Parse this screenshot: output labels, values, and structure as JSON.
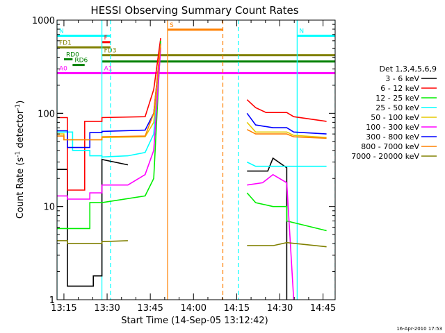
{
  "chart_data": {
    "type": "line",
    "title": "HESSI Observing Summary Count Rates",
    "xlabel": "Start Time (14-Sep-05 13:12:42)",
    "ylabel_main": "Count Rate (s",
    "ylabel_sup1": "-1",
    "ylabel_mid": " detector",
    "ylabel_sup2": "-1",
    "ylabel_end": ")",
    "footer": "16-Apr-2010 17:53",
    "y_scale": "log",
    "ylim": [
      1,
      1000
    ],
    "xlim": [
      13.21,
      14.82
    ],
    "y_ticks": [
      {
        "v": 1,
        "label": "1"
      },
      {
        "v": 10,
        "label": "10"
      },
      {
        "v": 100,
        "label": "100"
      },
      {
        "v": 1000,
        "label": "1000"
      }
    ],
    "x_ticks": [
      {
        "v": 13.25,
        "label": "13:15"
      },
      {
        "v": 13.5,
        "label": "13:30"
      },
      {
        "v": 13.75,
        "label": "13:45"
      },
      {
        "v": 14.0,
        "label": "14:00"
      },
      {
        "v": 14.25,
        "label": "14:15"
      },
      {
        "v": 14.5,
        "label": "14:30"
      },
      {
        "v": 14.75,
        "label": "14:45"
      }
    ],
    "legend_placement": "right",
    "legend_title": "Det 1,3,4,5,6,9",
    "series": [
      {
        "name": "3 - 6 keV",
        "color": "#000000",
        "segments": [
          [
            [
              13.21,
              25
            ],
            [
              13.27,
              25
            ],
            [
              13.27,
              1.4
            ],
            [
              13.42,
              1.4
            ],
            [
              13.42,
              1.8
            ],
            [
              13.47,
              1.8
            ],
            [
              13.47,
              32
            ],
            [
              13.62,
              28
            ],
            [
              13.62,
              28
            ]
          ],
          [
            [
              14.31,
              24
            ],
            [
              14.43,
              24
            ],
            [
              14.46,
              33
            ],
            [
              14.54,
              26
            ],
            [
              14.54,
              1
            ]
          ]
        ]
      },
      {
        "name": "6 - 12 keV",
        "color": "#ff0000",
        "segments": [
          [
            [
              13.21,
              90
            ],
            [
              13.27,
              90
            ],
            [
              13.27,
              15
            ],
            [
              13.37,
              15
            ],
            [
              13.37,
              82
            ],
            [
              13.47,
              82
            ],
            [
              13.47,
              90
            ],
            [
              13.72,
              92
            ],
            [
              13.77,
              180
            ],
            [
              13.81,
              640
            ]
          ],
          [
            [
              14.31,
              140
            ],
            [
              14.36,
              115
            ],
            [
              14.42,
              102
            ],
            [
              14.54,
              102
            ],
            [
              14.58,
              92
            ],
            [
              14.77,
              82
            ]
          ]
        ]
      },
      {
        "name": "12 - 25 keV",
        "color": "#00ee00",
        "segments": [
          [
            [
              13.21,
              5.8
            ],
            [
              13.27,
              5.8
            ],
            [
              13.27,
              5.8
            ],
            [
              13.4,
              5.8
            ],
            [
              13.4,
              11
            ],
            [
              13.47,
              11
            ],
            [
              13.47,
              11
            ],
            [
              13.72,
              13
            ],
            [
              13.77,
              20
            ],
            [
              13.81,
              600
            ]
          ],
          [
            [
              14.31,
              14
            ],
            [
              14.36,
              11
            ],
            [
              14.46,
              10
            ],
            [
              14.54,
              10
            ],
            [
              14.54,
              7
            ],
            [
              14.77,
              5.5
            ]
          ]
        ]
      },
      {
        "name": "25 - 50 keV",
        "color": "#00ffff",
        "segments": [
          [
            [
              13.21,
              63
            ],
            [
              13.3,
              63
            ],
            [
              13.3,
              40
            ],
            [
              13.4,
              40
            ],
            [
              13.4,
              35
            ],
            [
              13.47,
              35
            ],
            [
              13.47,
              34
            ],
            [
              13.62,
              35
            ],
            [
              13.72,
              38
            ],
            [
              13.77,
              60
            ],
            [
              13.81,
              560
            ]
          ],
          [
            [
              14.31,
              30
            ],
            [
              14.36,
              27
            ],
            [
              14.54,
              27
            ],
            [
              14.58,
              27
            ],
            [
              14.77,
              27
            ]
          ]
        ]
      },
      {
        "name": "50 - 100 keV",
        "color": "#e6c800",
        "segments": [
          [
            [
              13.21,
              60
            ],
            [
              13.25,
              60
            ],
            [
              13.25,
              52
            ],
            [
              13.47,
              52
            ],
            [
              13.47,
              55
            ],
            [
              13.72,
              56
            ],
            [
              13.77,
              80
            ],
            [
              13.81,
              520
            ]
          ],
          [
            [
              14.31,
              80
            ],
            [
              14.36,
              63
            ],
            [
              14.54,
              63
            ],
            [
              14.58,
              58
            ],
            [
              14.77,
              55
            ]
          ]
        ]
      },
      {
        "name": "100 - 300 keV",
        "color": "#ff00ff",
        "segments": [
          [
            [
              13.21,
              13
            ],
            [
              13.27,
              13
            ],
            [
              13.27,
              12
            ],
            [
              13.4,
              12
            ],
            [
              13.4,
              14
            ],
            [
              13.47,
              14
            ],
            [
              13.47,
              17
            ],
            [
              13.62,
              17
            ],
            [
              13.72,
              22
            ],
            [
              13.77,
              40
            ],
            [
              13.81,
              500
            ]
          ],
          [
            [
              14.31,
              17
            ],
            [
              14.4,
              18
            ],
            [
              14.46,
              22
            ],
            [
              14.54,
              18
            ],
            [
              14.58,
              1
            ]
          ]
        ]
      },
      {
        "name": "300 - 800 keV",
        "color": "#0000ff",
        "segments": [
          [
            [
              13.21,
              65
            ],
            [
              13.27,
              65
            ],
            [
              13.27,
              43
            ],
            [
              13.4,
              43
            ],
            [
              13.4,
              62
            ],
            [
              13.47,
              62
            ],
            [
              13.47,
              64
            ],
            [
              13.72,
              66
            ],
            [
              13.77,
              100
            ],
            [
              13.81,
              560
            ]
          ],
          [
            [
              14.31,
              100
            ],
            [
              14.36,
              75
            ],
            [
              14.46,
              70
            ],
            [
              14.54,
              70
            ],
            [
              14.58,
              63
            ],
            [
              14.77,
              60
            ]
          ]
        ]
      },
      {
        "name": "800 - 7000 keV",
        "color": "#ff8000",
        "segments": [
          [
            [
              13.21,
              57
            ],
            [
              13.25,
              57
            ],
            [
              13.25,
              52
            ],
            [
              13.47,
              52
            ],
            [
              13.47,
              56
            ],
            [
              13.72,
              57
            ],
            [
              13.77,
              100
            ],
            [
              13.81,
              560
            ]
          ],
          [
            [
              14.31,
              67
            ],
            [
              14.36,
              60
            ],
            [
              14.54,
              60
            ],
            [
              14.58,
              56
            ],
            [
              14.77,
              54
            ]
          ]
        ]
      },
      {
        "name": "7000 - 20000 keV",
        "color": "#808000",
        "segments": [
          [
            [
              13.21,
              4.3
            ],
            [
              13.27,
              4.3
            ],
            [
              13.27,
              4.0
            ],
            [
              13.47,
              4.0
            ],
            [
              13.47,
              4.2
            ],
            [
              13.62,
              4.3
            ],
            [
              13.62,
              4.3
            ]
          ],
          [
            [
              14.31,
              3.8
            ],
            [
              14.46,
              3.8
            ],
            [
              14.54,
              4.1
            ],
            [
              14.77,
              3.7
            ]
          ]
        ]
      }
    ],
    "flag_lines": [
      {
        "label": "N",
        "color": "#00ffff",
        "x0": 13.21,
        "x1": 13.52,
        "y": 680
      },
      {
        "label": "N",
        "color": "#00ffff",
        "x0": 14.6,
        "x1": 14.82,
        "y": 680
      },
      {
        "label": "F",
        "color": "#ff0000",
        "x0": 13.47,
        "x1": 13.52,
        "y": 580
      },
      {
        "label": "FD1",
        "color": "#808000",
        "x0": 13.21,
        "x1": 13.52,
        "y": 510
      },
      {
        "label": "FD3",
        "color": "#808000",
        "x0": 13.47,
        "x1": 14.82,
        "y": 420
      },
      {
        "label": "RD0",
        "color": "#008000",
        "x0": 13.25,
        "x1": 13.3,
        "y": 380
      },
      {
        "label": "",
        "color": "#008000",
        "x0": 13.47,
        "x1": 14.82,
        "y": 360
      },
      {
        "label": "RD6",
        "color": "#008000",
        "x0": 13.3,
        "x1": 13.37,
        "y": 330
      },
      {
        "label": "A0",
        "color": "#ff00ff",
        "x0": 13.21,
        "x1": 13.52,
        "y": 270
      },
      {
        "label": "A1",
        "color": "#ff00ff",
        "x0": 13.47,
        "x1": 14.82,
        "y": 270
      },
      {
        "label": "S",
        "color": "#ff8000",
        "x0": 13.85,
        "x1": 14.17,
        "y": 790
      }
    ],
    "vertical_lines": [
      {
        "x": 13.21,
        "color": "#00ffff",
        "dashed": false
      },
      {
        "x": 13.52,
        "color": "#00ffff",
        "dashed": true
      },
      {
        "x": 13.47,
        "color": "#00ffff",
        "dashed": false
      },
      {
        "x": 13.85,
        "color": "#ff8000",
        "dashed": false
      },
      {
        "x": 14.17,
        "color": "#ff8000",
        "dashed": true
      },
      {
        "x": 14.26,
        "color": "#00ffff",
        "dashed": true
      },
      {
        "x": 14.6,
        "color": "#00ffff",
        "dashed": false
      },
      {
        "x": 14.82,
        "color": "#00ffff",
        "dashed": true
      }
    ]
  }
}
